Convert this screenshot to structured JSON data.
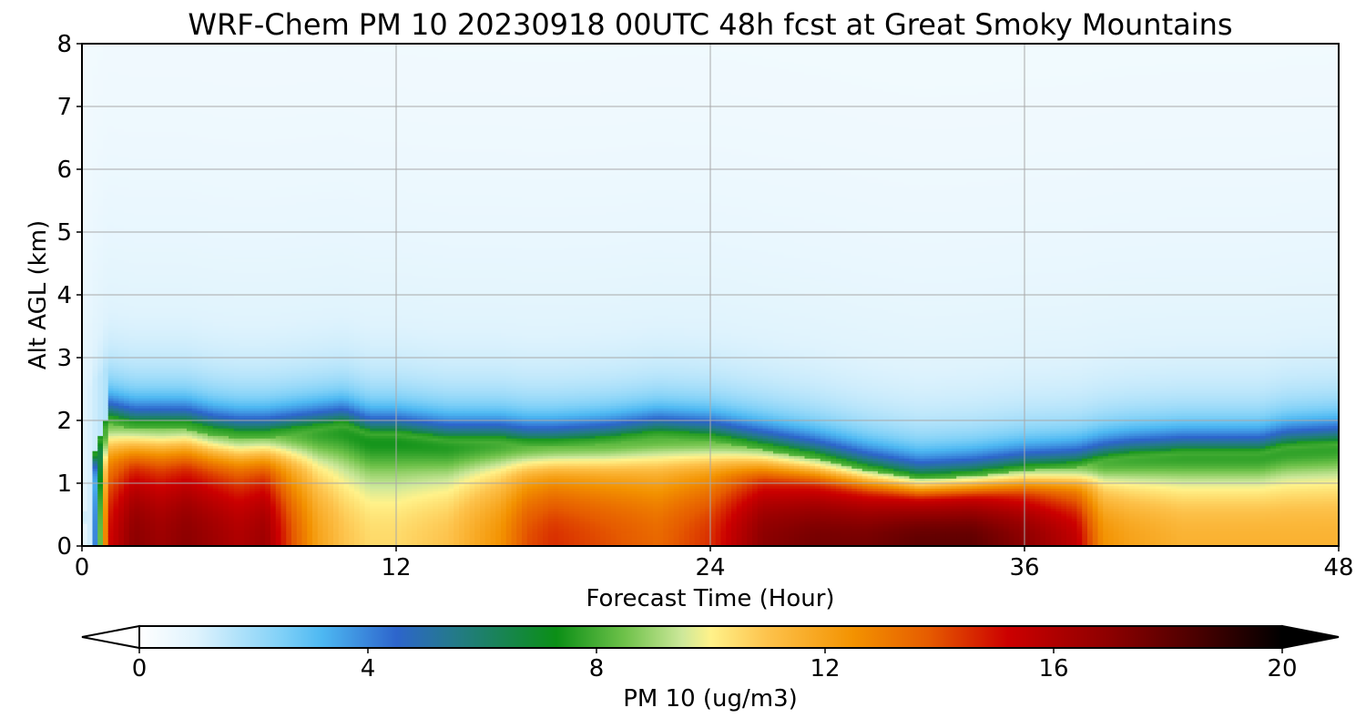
{
  "chart_data": {
    "type": "heatmap",
    "title": "WRF-Chem PM 10  20230918 00UTC 48h fcst at Great Smoky Mountains",
    "xlabel": "Forecast Time (Hour)",
    "ylabel": "Alt AGL (km)",
    "xlim": [
      0,
      48
    ],
    "ylim": [
      0,
      8
    ],
    "x_ticks": [
      0,
      12,
      24,
      36,
      48
    ],
    "y_ticks": [
      0,
      1,
      2,
      3,
      4,
      5,
      6,
      7,
      8
    ],
    "grid": true,
    "colorbar": {
      "label": "PM 10  (ug/m3)",
      "range": [
        0,
        20
      ],
      "ticks": [
        0,
        4,
        8,
        12,
        16,
        20
      ],
      "extend": "both",
      "stops": [
        {
          "v": 0,
          "c": "#ffffff"
        },
        {
          "v": 1,
          "c": "#dff3fd"
        },
        {
          "v": 2.5,
          "c": "#7fd0f7"
        },
        {
          "v": 3.2,
          "c": "#4db8f2"
        },
        {
          "v": 4.5,
          "c": "#2d65cc"
        },
        {
          "v": 5.5,
          "c": "#247a8a"
        },
        {
          "v": 7.3,
          "c": "#0b8f16"
        },
        {
          "v": 8.5,
          "c": "#6fc24a"
        },
        {
          "v": 9.5,
          "c": "#cde89a"
        },
        {
          "v": 10,
          "c": "#fff28a"
        },
        {
          "v": 11,
          "c": "#fdc24b"
        },
        {
          "v": 12.5,
          "c": "#f39200"
        },
        {
          "v": 13.8,
          "c": "#e65c00"
        },
        {
          "v": 15.2,
          "c": "#cc0000"
        },
        {
          "v": 17,
          "c": "#8c0000"
        },
        {
          "v": 18.5,
          "c": "#4a0000"
        },
        {
          "v": 20,
          "c": "#000000"
        }
      ]
    },
    "x": [
      0,
      0.5,
      1,
      2,
      3,
      4,
      5,
      6,
      7,
      8,
      9,
      10,
      11,
      12,
      13,
      14,
      15,
      16,
      17,
      18,
      19,
      20,
      21,
      22,
      23,
      24,
      25,
      26,
      27,
      28,
      29,
      30,
      31,
      32,
      33,
      34,
      35,
      36,
      37,
      38,
      39,
      40,
      41,
      42,
      43,
      44,
      45,
      46,
      47,
      48
    ],
    "profile_x": [
      0,
      0.5,
      1,
      2,
      3,
      4,
      5,
      6,
      7,
      8,
      9,
      10,
      11,
      12,
      14,
      16,
      17,
      18,
      20,
      22,
      24,
      26,
      28,
      30,
      32,
      34,
      36,
      38,
      39,
      40,
      42,
      44,
      45,
      46,
      48
    ],
    "boundary_layer_top_km": [
      0.3,
      1.5,
      2.1,
      2.0,
      2.0,
      2.0,
      1.9,
      1.85,
      1.85,
      1.9,
      1.95,
      2.0,
      1.85,
      1.85,
      1.75,
      1.75,
      1.7,
      1.7,
      1.75,
      1.85,
      1.8,
      1.65,
      1.5,
      1.3,
      1.15,
      1.2,
      1.3,
      1.35,
      1.45,
      1.5,
      1.55,
      1.55,
      1.55,
      1.65,
      1.7
    ],
    "near_surface_max_ugm3": [
      0,
      4,
      15,
      17,
      16.5,
      17,
      16.5,
      16,
      16.5,
      14,
      12,
      11,
      10.5,
      10.5,
      11,
      12.5,
      14,
      14.5,
      14,
      13.5,
      14.5,
      17,
      17.5,
      17.5,
      18,
      18,
      17,
      15.5,
      12.5,
      12,
      11.5,
      11.5,
      11.5,
      11.5,
      11.5
    ]
  }
}
